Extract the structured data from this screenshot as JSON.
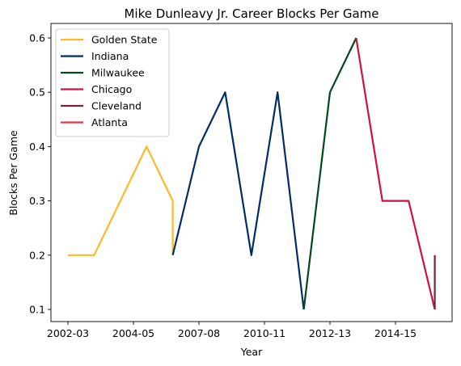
{
  "chart_data": {
    "type": "line",
    "title": "Mike Dunleavy Jr. Career Blocks Per Game",
    "xlabel": "Year",
    "ylabel": "Blocks Per Game",
    "x_tick_labels": [
      "2002-03",
      "2004-05",
      "2007-08",
      "2010-11",
      "2012-13",
      "2014-15"
    ],
    "y_ticks": [
      0.1,
      0.2,
      0.3,
      0.4,
      0.5,
      0.6
    ],
    "ylim": [
      0.075,
      0.625
    ],
    "grid": false,
    "legend_position": "top-left",
    "series": [
      {
        "name": "Golden State",
        "color": "#FDB927",
        "x": [
          "2002-03",
          "2003-04",
          "2004-05",
          "2005-06",
          "2006-07",
          "2006-07"
        ],
        "values": [
          0.2,
          0.2,
          0.3,
          0.4,
          0.3,
          0.2
        ]
      },
      {
        "name": "Indiana",
        "color": "#002D62",
        "x": [
          "2006-07",
          "2007-08",
          "2008-09",
          "2009-10",
          "2010-11",
          "2011-12"
        ],
        "values": [
          0.2,
          0.4,
          0.5,
          0.2,
          0.5,
          0.1
        ]
      },
      {
        "name": "Milwaukee",
        "color": "#00471B",
        "x": [
          "2011-12",
          "2012-13",
          "2013-14"
        ],
        "values": [
          0.1,
          0.5,
          0.6
        ]
      },
      {
        "name": "Chicago",
        "color": "#CE1141",
        "x": [
          "2013-14",
          "2014-15",
          "2015-16",
          "2016-17"
        ],
        "values": [
          0.6,
          0.3,
          0.3,
          0.1
        ]
      },
      {
        "name": "Cleveland",
        "color": "#6F263D",
        "x": [
          "2016-17",
          "2016-17"
        ],
        "values": [
          0.1,
          0.2
        ]
      },
      {
        "name": "Atlanta",
        "color": "#E03A3E",
        "x": [
          "2016-17"
        ],
        "values": [
          0.1
        ]
      }
    ]
  }
}
